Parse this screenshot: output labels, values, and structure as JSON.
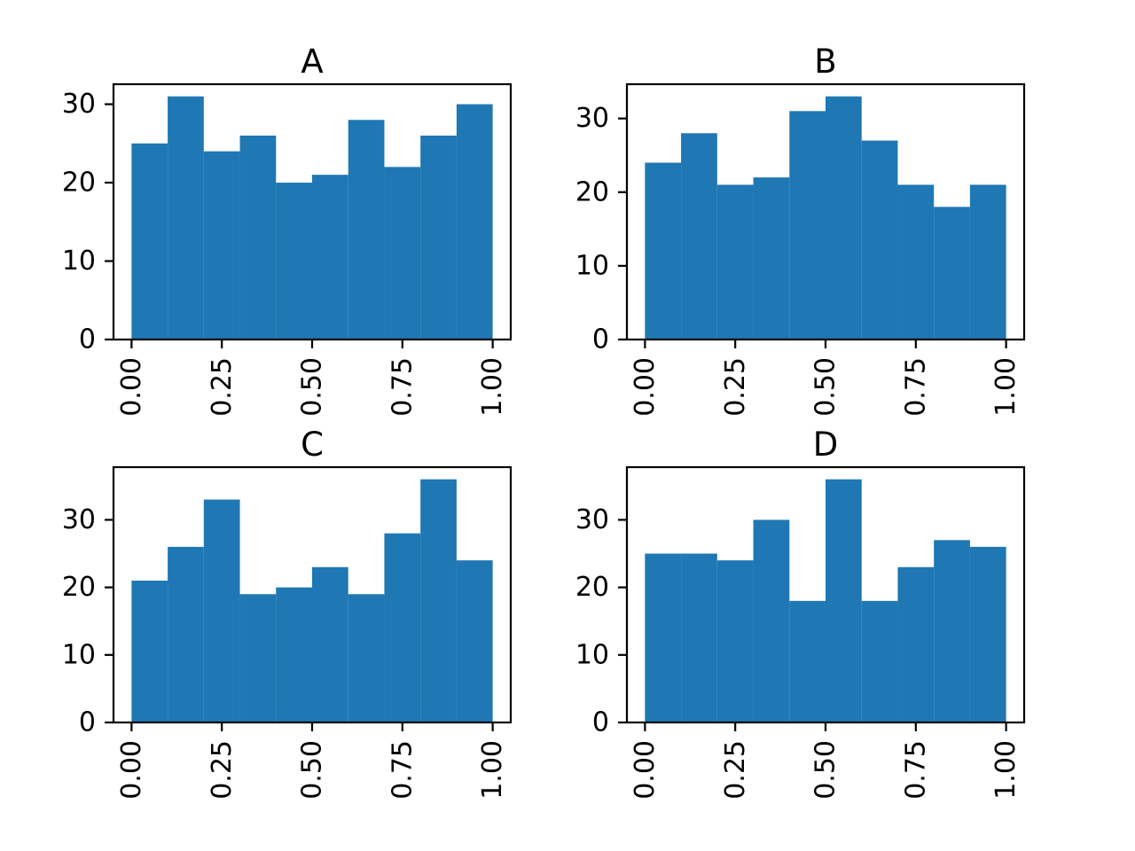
{
  "figure": {
    "background": "#ffffff",
    "bar_color": "#1f77b4",
    "axis_color": "#000000",
    "text_color": "#000000",
    "layout": {
      "rows": 2,
      "cols": 2,
      "grid": false,
      "legend": false
    }
  },
  "chart_data": [
    {
      "type": "bar",
      "subtype": "histogram",
      "title": "A",
      "xlabel": "",
      "ylabel": "",
      "bin_edges": [
        0.0,
        0.1,
        0.2,
        0.3,
        0.4,
        0.5,
        0.6,
        0.7,
        0.8,
        0.9,
        1.0
      ],
      "values": [
        25,
        31,
        24,
        26,
        20,
        21,
        28,
        22,
        26,
        30
      ],
      "xlim": [
        -0.05,
        1.05
      ],
      "ylim": [
        0,
        32.55
      ],
      "xticks": {
        "values": [
          0.0,
          0.25,
          0.5,
          0.75,
          1.0
        ],
        "labels": [
          "0.00",
          "0.25",
          "0.50",
          "0.75",
          "1.00"
        ],
        "rotation": 90
      },
      "yticks": {
        "values": [
          0,
          10,
          20,
          30
        ],
        "labels": [
          "0",
          "10",
          "20",
          "30"
        ],
        "rotation": 0
      }
    },
    {
      "type": "bar",
      "subtype": "histogram",
      "title": "B",
      "xlabel": "",
      "ylabel": "",
      "bin_edges": [
        0.0,
        0.1,
        0.2,
        0.3,
        0.4,
        0.5,
        0.6,
        0.7,
        0.8,
        0.9,
        1.0
      ],
      "values": [
        24,
        28,
        21,
        22,
        31,
        33,
        27,
        21,
        18,
        21
      ],
      "xlim": [
        -0.05,
        1.05
      ],
      "ylim": [
        0,
        34.65
      ],
      "xticks": {
        "values": [
          0.0,
          0.25,
          0.5,
          0.75,
          1.0
        ],
        "labels": [
          "0.00",
          "0.25",
          "0.50",
          "0.75",
          "1.00"
        ],
        "rotation": 90
      },
      "yticks": {
        "values": [
          0,
          10,
          20,
          30
        ],
        "labels": [
          "0",
          "10",
          "20",
          "30"
        ],
        "rotation": 0
      }
    },
    {
      "type": "bar",
      "subtype": "histogram",
      "title": "C",
      "xlabel": "",
      "ylabel": "",
      "bin_edges": [
        0.0,
        0.1,
        0.2,
        0.3,
        0.4,
        0.5,
        0.6,
        0.7,
        0.8,
        0.9,
        1.0
      ],
      "values": [
        21,
        26,
        33,
        19,
        20,
        23,
        19,
        28,
        36,
        24
      ],
      "xlim": [
        -0.05,
        1.05
      ],
      "ylim": [
        0,
        37.8
      ],
      "xticks": {
        "values": [
          0.0,
          0.25,
          0.5,
          0.75,
          1.0
        ],
        "labels": [
          "0.00",
          "0.25",
          "0.50",
          "0.75",
          "1.00"
        ],
        "rotation": 90
      },
      "yticks": {
        "values": [
          0,
          10,
          20,
          30
        ],
        "labels": [
          "0",
          "10",
          "20",
          "30"
        ],
        "rotation": 0
      }
    },
    {
      "type": "bar",
      "subtype": "histogram",
      "title": "D",
      "xlabel": "",
      "ylabel": "",
      "bin_edges": [
        0.0,
        0.1,
        0.2,
        0.3,
        0.4,
        0.5,
        0.6,
        0.7,
        0.8,
        0.9,
        1.0
      ],
      "values": [
        25,
        25,
        24,
        30,
        18,
        36,
        18,
        23,
        27,
        26
      ],
      "xlim": [
        -0.05,
        1.05
      ],
      "ylim": [
        0,
        37.8
      ],
      "xticks": {
        "values": [
          0.0,
          0.25,
          0.5,
          0.75,
          1.0
        ],
        "labels": [
          "0.00",
          "0.25",
          "0.50",
          "0.75",
          "1.00"
        ],
        "rotation": 90
      },
      "yticks": {
        "values": [
          0,
          10,
          20,
          30
        ],
        "labels": [
          "0",
          "10",
          "20",
          "30"
        ],
        "rotation": 0
      }
    }
  ]
}
